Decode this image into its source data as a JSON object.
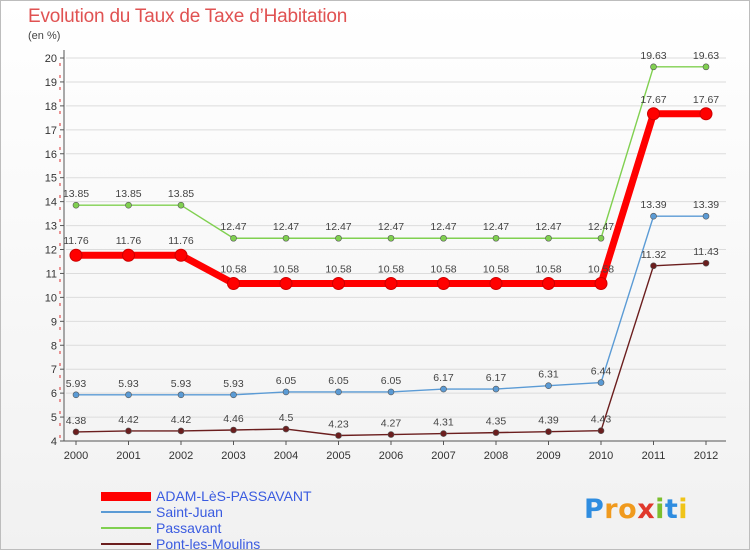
{
  "chart_data": {
    "type": "line",
    "title": "Evolution du Taux de Taxe d’Habitation",
    "subtitle": "(en %)",
    "xlabel": "",
    "ylabel": "",
    "x": [
      "2000",
      "2001",
      "2002",
      "2003",
      "2004",
      "2005",
      "2006",
      "2007",
      "2008",
      "2009",
      "2010",
      "2011",
      "2012"
    ],
    "ylim": [
      4,
      20
    ],
    "yticks": [
      "4",
      "5",
      "6",
      "7",
      "8",
      "9",
      "10",
      "11",
      "12",
      "13",
      "14",
      "15",
      "16",
      "17",
      "18",
      "19",
      "20"
    ],
    "grid": "horizontal",
    "legend_position": "bottom-left",
    "series": [
      {
        "name": "Passavant",
        "color": "#80d050",
        "values": [
          13.85,
          13.85,
          13.85,
          12.47,
          12.47,
          12.47,
          12.47,
          12.47,
          12.47,
          12.47,
          12.47,
          19.63,
          19.63
        ],
        "labels": [
          "13.85",
          "13.85",
          "13.85",
          "12.47",
          "12.47",
          "12.47",
          "12.47",
          "12.47",
          "12.47",
          "12.47",
          "12.47",
          "19.63",
          "19.63"
        ]
      },
      {
        "name": "ADAM-LèS-PASSAVANT",
        "color": "#ff0000",
        "values": [
          11.76,
          11.76,
          11.76,
          10.58,
          10.58,
          10.58,
          10.58,
          10.58,
          10.58,
          10.58,
          10.58,
          17.67,
          17.67
        ],
        "labels": [
          "11.76",
          "11.76",
          "11.76",
          "10.58",
          "10.58",
          "10.58",
          "10.58",
          "10.58",
          "10.58",
          "10.58",
          "10.58",
          "17.67",
          "17.67"
        ]
      },
      {
        "name": "Saint-Juan",
        "color": "#5b9bd5",
        "values": [
          5.93,
          5.93,
          5.93,
          5.93,
          6.05,
          6.05,
          6.05,
          6.17,
          6.17,
          6.31,
          6.44,
          13.39,
          13.39
        ],
        "labels": [
          "5.93",
          "5.93",
          "5.93",
          "5.93",
          "6.05",
          "6.05",
          "6.05",
          "6.17",
          "6.17",
          "6.31",
          "6.44",
          "13.39",
          "13.39"
        ]
      },
      {
        "name": "Pont-les-Moulins",
        "color": "#6b1e1e",
        "values": [
          4.38,
          4.42,
          4.42,
          4.46,
          4.5,
          4.23,
          4.27,
          4.31,
          4.35,
          4.39,
          4.43,
          11.32,
          11.43
        ],
        "labels": [
          "4.38",
          "4.42",
          "4.42",
          "4.46",
          "4.5",
          "4.23",
          "4.27",
          "4.31",
          "4.35",
          "4.39",
          "4.43",
          "11.32",
          "11.43"
        ]
      }
    ],
    "legend": [
      {
        "name": "ADAM-LèS-PASSAVANT",
        "color": "#ff0000"
      },
      {
        "name": "Saint-Juan",
        "color": "#5b9bd5"
      },
      {
        "name": "Passavant",
        "color": "#80d050"
      },
      {
        "name": "Pont-les-Moulins",
        "color": "#6b1e1e"
      }
    ]
  },
  "brand": {
    "letters": [
      "P",
      "r",
      "o",
      "x",
      "i",
      "t",
      "i"
    ],
    "colors": [
      "#2f8de0",
      "#f09a1e",
      "#f09a1e",
      "#e0382c",
      "#7cbf2e",
      "#2f8de0",
      "#f0c419"
    ]
  }
}
